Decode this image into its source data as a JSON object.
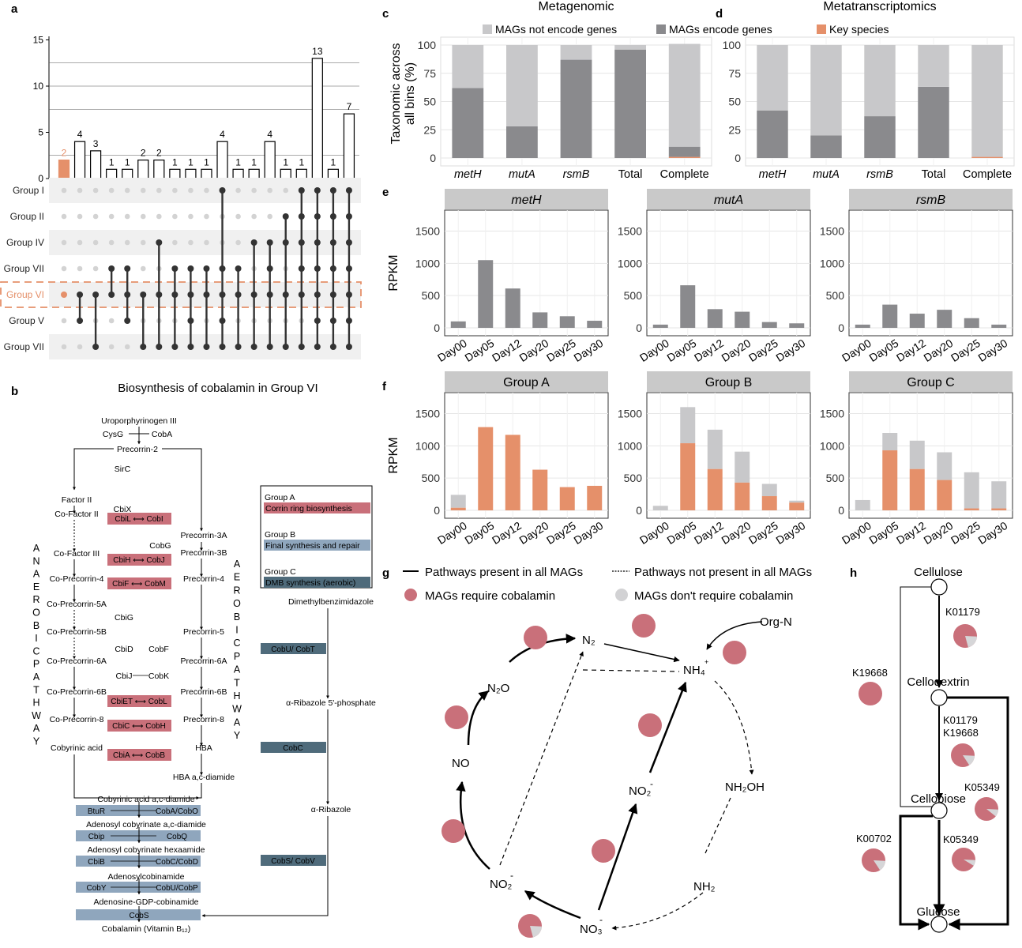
{
  "panel_labels": {
    "a": "a",
    "b": "b",
    "c": "c",
    "d": "d",
    "e": "e",
    "f": "f",
    "g": "g",
    "h": "h"
  },
  "colors": {
    "orange": "#e5906a",
    "dark_gray": "#8a8a8d",
    "light_gray": "#c8c8ca",
    "rose": "#c9707a",
    "blue_gray": "#8fa6bd",
    "slate": "#4f6b7b",
    "strip": "#c9c9c9"
  },
  "panel_a": {
    "groups": [
      "Group I",
      "Group II",
      "Group IV",
      "Group VII",
      "Group VI",
      "Group V",
      "Group VII"
    ],
    "highlight_group_index": 4,
    "y_ticks": [
      "0",
      "5",
      "10",
      "15"
    ],
    "bars": [
      2,
      4,
      3,
      1,
      1,
      2,
      2,
      1,
      1,
      1,
      4,
      1,
      1,
      4,
      1,
      1,
      13,
      1,
      7
    ],
    "bar_labels": [
      "2",
      "4",
      "3",
      "1",
      "1",
      "2",
      "2",
      "1",
      "1",
      "1",
      "4",
      "1",
      "1",
      "4",
      "1",
      "1",
      "13",
      "1",
      "7"
    ],
    "highlight_bar_index": 0,
    "membership": [
      [
        4
      ],
      [
        4,
        5
      ],
      [
        4,
        6
      ],
      [
        3,
        4
      ],
      [
        3,
        4,
        5
      ],
      [
        4,
        6
      ],
      [
        2,
        4,
        6
      ],
      [
        3,
        4,
        6
      ],
      [
        3,
        4,
        5,
        6
      ],
      [
        3,
        4,
        6
      ],
      [
        0,
        3,
        4,
        5,
        6
      ],
      [
        3,
        4,
        6
      ],
      [
        2,
        4,
        6
      ],
      [
        2,
        3,
        4,
        6
      ],
      [
        1,
        2,
        4,
        6
      ],
      [
        0,
        1,
        2,
        3,
        4,
        6
      ],
      [
        0,
        1,
        2,
        3,
        4,
        5,
        6
      ],
      [
        0,
        1,
        2,
        3,
        4,
        5,
        6
      ],
      [
        0,
        1,
        2,
        3,
        4,
        5,
        6
      ]
    ]
  },
  "panel_b": {
    "title": "Biosynthesis of cobalamin in Group VI",
    "anaerobic_label": "ANAEROBIC PATHWAY",
    "aerobic_label": "AEROBIC PATHWAY",
    "legend": [
      {
        "group": "Group A",
        "text": "Corrin ring biosynthesis"
      },
      {
        "group": "Group B",
        "text": "Final synthesis and repair"
      },
      {
        "group": "Group C",
        "text": "DMB synthesis  (aerobic)"
      }
    ],
    "top": {
      "uro": "Uroporphyrinogen III",
      "cysg": "CysG",
      "coba": "CobA",
      "prec2": "Precorrin-2",
      "sirc": "SirC"
    },
    "anaerobic": [
      "Factor II",
      "Co-Factor II",
      "Co-Factor III",
      "Co-Precorrin-4",
      "Co-Precorrin-5A",
      "Co-Precorrin-5B",
      "Co-Precorrin-6A",
      "Co-Precorrin-6B",
      "Co-Precorrin-8",
      "Cobyrinic acid"
    ],
    "aerobic": [
      "Precorrin-3A",
      "Precorrin-3B",
      "Precorrin-4",
      "Precorrin-5",
      "Precorrin-6A",
      "Precorrin-6B",
      "Precorrin-8",
      "HBA",
      "HBA a,c-diamide"
    ],
    "middle_text": [
      "CbiX",
      "CobG",
      "CbiG",
      "CbiD",
      "CobF",
      "CbiJ",
      "CobK"
    ],
    "red_boxes": [
      "CbiL ⟷ CobI",
      "CbiH ⟷ CobJ",
      "CbiF ⟷ CobM",
      "CbiET ⟷ CobL",
      "CbiC ⟷ CobH",
      "CbiA ⟷ CobB"
    ],
    "final_steps": [
      "Cobyrinic acid a,c-diamide",
      "Adenosyl cobyrinate a,c-diamide",
      "Adenosyl cobyrinate hexaamide",
      "Adenosylcobinamide",
      "Adenosine-GDP-cobinamide",
      "Cobalamin (Vitamin B₁₂)"
    ],
    "blue_boxes": [
      {
        "l": "BtuR",
        "r": "CobA/CobO"
      },
      {
        "l": "Cbip",
        "r": "CobQ"
      },
      {
        "l": "CbiB",
        "r": "CobC/CobD"
      },
      {
        "l": "CobY",
        "r": "CobU/CobP"
      },
      {
        "l": "",
        "r": "CobS"
      }
    ],
    "dmb": [
      "Dimethylbenzimidazole",
      "α-Ribazole 5'-phosphate",
      "α-Ribazole"
    ],
    "dmb_boxes": [
      "CobU/ CobT",
      "CobC",
      "CobS/ CobV"
    ]
  },
  "chart_data": [
    {
      "type": "bar",
      "panel": "c",
      "title": "Metagenomic",
      "ylabel": "Taxonomic across all bins (%)",
      "categories": [
        "metH",
        "mutA",
        "rsmB",
        "Total",
        "Complete"
      ],
      "ylim": [
        0,
        100
      ],
      "series": [
        {
          "name": "MAGs encode genes",
          "values": [
            62,
            28,
            87,
            96,
            9
          ]
        },
        {
          "name": "MAGs not encode genes",
          "values": [
            38,
            72,
            13,
            4,
            91
          ]
        },
        {
          "name": "Key species",
          "values": [
            0,
            0,
            0,
            0,
            1
          ]
        }
      ]
    },
    {
      "type": "bar",
      "panel": "d",
      "title": "Metatranscriptomics",
      "categories": [
        "metH",
        "mutA",
        "rsmB",
        "Total",
        "Complete"
      ],
      "ylim": [
        0,
        100
      ],
      "series": [
        {
          "name": "MAGs encode genes",
          "values": [
            42,
            20,
            37,
            63,
            0
          ]
        },
        {
          "name": "MAGs not encode genes",
          "values": [
            58,
            80,
            63,
            37,
            99
          ]
        },
        {
          "name": "Key species",
          "values": [
            0,
            0,
            0,
            0,
            1
          ]
        }
      ]
    },
    {
      "type": "bar",
      "panel": "e",
      "title": "metH",
      "ylabel": "RPKM",
      "categories": [
        "Day00",
        "Day05",
        "Day12",
        "Day20",
        "Day25",
        "Day30"
      ],
      "ylim": [
        0,
        1800
      ],
      "values": [
        100,
        1050,
        610,
        240,
        180,
        110
      ]
    },
    {
      "type": "bar",
      "panel": "e",
      "title": "mutA",
      "categories": [
        "Day00",
        "Day05",
        "Day12",
        "Day20",
        "Day25",
        "Day30"
      ],
      "ylim": [
        0,
        1800
      ],
      "values": [
        50,
        660,
        290,
        250,
        90,
        70
      ]
    },
    {
      "type": "bar",
      "panel": "e",
      "title": "rsmB",
      "categories": [
        "Day00",
        "Day05",
        "Day12",
        "Day20",
        "Day25",
        "Day30"
      ],
      "ylim": [
        0,
        1800
      ],
      "values": [
        50,
        360,
        220,
        280,
        150,
        50
      ]
    },
    {
      "type": "bar",
      "panel": "f",
      "title": "Group A",
      "ylabel": "RPKM",
      "categories": [
        "Day00",
        "Day05",
        "Day12",
        "Day20",
        "Day25",
        "Day30"
      ],
      "ylim": [
        0,
        1800
      ],
      "series": [
        {
          "values": [
            40,
            1290,
            1170,
            630,
            360,
            380
          ]
        },
        {
          "values": [
            200,
            0,
            0,
            0,
            0,
            0
          ]
        }
      ]
    },
    {
      "type": "bar",
      "panel": "f",
      "title": "Group B",
      "categories": [
        "Day00",
        "Day05",
        "Day12",
        "Day20",
        "Day25",
        "Day30"
      ],
      "ylim": [
        0,
        1800
      ],
      "series": [
        {
          "values": [
            0,
            1040,
            640,
            430,
            220,
            120
          ]
        },
        {
          "values": [
            70,
            560,
            610,
            480,
            190,
            30
          ]
        }
      ]
    },
    {
      "type": "bar",
      "panel": "f",
      "title": "Group C",
      "categories": [
        "Day00",
        "Day05",
        "Day12",
        "Day20",
        "Day25",
        "Day30"
      ],
      "ylim": [
        0,
        1800
      ],
      "series": [
        {
          "values": [
            0,
            930,
            640,
            470,
            30,
            30
          ]
        },
        {
          "values": [
            160,
            270,
            440,
            430,
            560,
            420
          ]
        }
      ]
    }
  ],
  "axis": {
    "pct_ticks": [
      "0",
      "25",
      "50",
      "75",
      "100"
    ],
    "rpkm_ticks": [
      "0",
      "500",
      "1000",
      "1500"
    ]
  },
  "panel_g": {
    "legend_solid": "Pathways present in all MAGs",
    "legend_dashed": "Pathways not present in all MAGs",
    "legend_red": "MAGs require cobalamin",
    "legend_gray": "MAGs don't require cobalamin",
    "nodes": {
      "n2": "N₂",
      "nh4": "NH₄",
      "nh4_sup": "+",
      "orgn": "Org-N",
      "n2o": "N₂O",
      "no": "NO",
      "no2a": "NO₂",
      "no2b": "NO₂",
      "no3": "NO₃",
      "nh2oh": "NH₂OH",
      "nh2": "NH₂",
      "minus": "-"
    }
  },
  "panel_h": {
    "nodes": [
      "Cellulose",
      "Cellodextrin",
      "Cellobiose",
      "Glucose"
    ],
    "labels": [
      "K01179",
      "K19668",
      "K01179",
      "K19668",
      "K05349",
      "K00702",
      "K05349"
    ]
  }
}
